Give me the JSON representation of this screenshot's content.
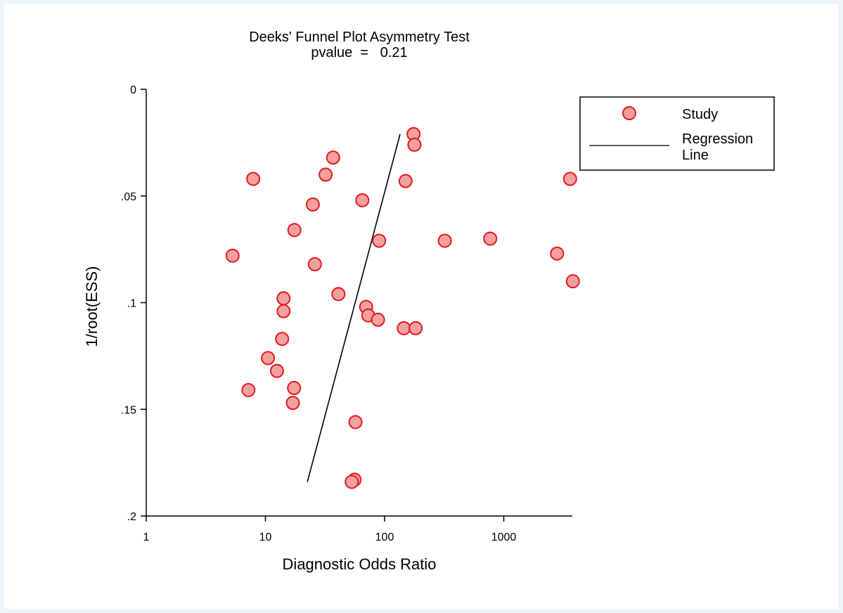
{
  "chart_data": {
    "type": "scatter",
    "title": "Deeks' Funnel Plot Asymmetry Test",
    "subtitle": "pvalue  =   0.21",
    "xlabel": "Diagnostic Odds Ratio",
    "ylabel": "1/root(ESS)",
    "x_scale": "log",
    "xlim": [
      1,
      4000
    ],
    "ylim": [
      0,
      0.2
    ],
    "y_reversed": true,
    "xticks": [
      {
        "value": 1,
        "label": "1"
      },
      {
        "value": 10,
        "label": "10"
      },
      {
        "value": 100,
        "label": "100"
      },
      {
        "value": 1000,
        "label": "1000"
      }
    ],
    "yticks": [
      {
        "value": 0,
        "label": "0"
      },
      {
        "value": 0.05,
        "label": ".05"
      },
      {
        "value": 0.1,
        "label": ".1"
      },
      {
        "value": 0.15,
        "label": ".15"
      },
      {
        "value": 0.2,
        "label": ".2"
      }
    ],
    "series": [
      {
        "name": "Study",
        "kind": "points",
        "color": "#e31a1c",
        "fill": "#f4a0a0",
        "points": [
          {
            "x": 175,
            "y": 0.021
          },
          {
            "x": 178,
            "y": 0.026
          },
          {
            "x": 37,
            "y": 0.032
          },
          {
            "x": 32,
            "y": 0.04
          },
          {
            "x": 7.9,
            "y": 0.042
          },
          {
            "x": 150,
            "y": 0.043
          },
          {
            "x": 3600,
            "y": 0.042
          },
          {
            "x": 65,
            "y": 0.052
          },
          {
            "x": 25,
            "y": 0.054
          },
          {
            "x": 17.5,
            "y": 0.066
          },
          {
            "x": 90,
            "y": 0.071
          },
          {
            "x": 320,
            "y": 0.071
          },
          {
            "x": 770,
            "y": 0.07
          },
          {
            "x": 2800,
            "y": 0.077
          },
          {
            "x": 5.3,
            "y": 0.078
          },
          {
            "x": 26,
            "y": 0.082
          },
          {
            "x": 3800,
            "y": 0.09
          },
          {
            "x": 41,
            "y": 0.096
          },
          {
            "x": 14.2,
            "y": 0.098
          },
          {
            "x": 14.2,
            "y": 0.104
          },
          {
            "x": 70,
            "y": 0.102
          },
          {
            "x": 73,
            "y": 0.106
          },
          {
            "x": 88,
            "y": 0.108
          },
          {
            "x": 145,
            "y": 0.112
          },
          {
            "x": 182,
            "y": 0.112
          },
          {
            "x": 13.8,
            "y": 0.117
          },
          {
            "x": 10.5,
            "y": 0.126
          },
          {
            "x": 12.5,
            "y": 0.132
          },
          {
            "x": 17.4,
            "y": 0.14
          },
          {
            "x": 7.2,
            "y": 0.141
          },
          {
            "x": 17,
            "y": 0.147
          },
          {
            "x": 57,
            "y": 0.156
          },
          {
            "x": 56,
            "y": 0.183
          },
          {
            "x": 53,
            "y": 0.184
          }
        ]
      },
      {
        "name": "Regression Line",
        "kind": "line",
        "color": "#000000",
        "points": [
          {
            "x": 135,
            "y": 0.021
          },
          {
            "x": 22.5,
            "y": 0.184
          }
        ]
      }
    ],
    "legend": {
      "position": "top-right",
      "entries": [
        {
          "label": "Study",
          "kind": "marker"
        },
        {
          "label": "Regression Line",
          "kind": "line",
          "lines": [
            "Regression",
            "Line"
          ]
        }
      ]
    }
  }
}
